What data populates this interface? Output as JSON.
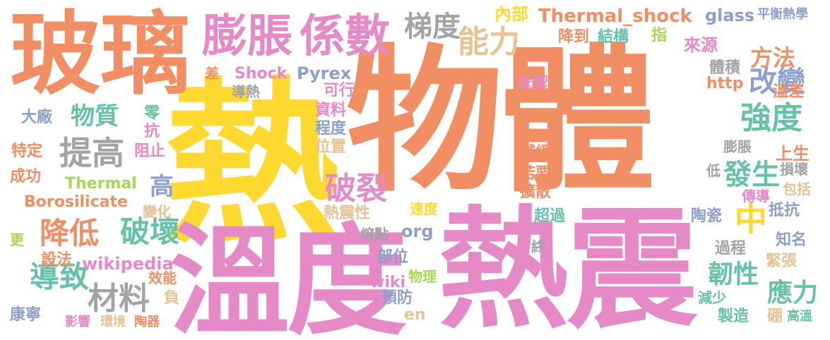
{
  "palette": {
    "orange": "#f28e63",
    "pink": "#e58ac6",
    "yellow": "#ffd92f",
    "green": "#66c2a5",
    "gray": "#a3a3a3",
    "blue": "#8da0cb",
    "lime": "#a6d854",
    "tan": "#e5c494"
  },
  "words": [
    {
      "text": "物體",
      "color": "orange"
    },
    {
      "text": "熱",
      "color": "yellow"
    },
    {
      "text": "溫度",
      "color": "pink"
    },
    {
      "text": "熱震",
      "color": "pink"
    },
    {
      "text": "玻璃",
      "color": "orange"
    },
    {
      "text": "膨脹",
      "color": "pink"
    },
    {
      "text": "係數",
      "color": "pink"
    },
    {
      "text": "提高",
      "color": "gray"
    },
    {
      "text": "物質",
      "color": "green"
    },
    {
      "text": "能力",
      "color": "tan"
    },
    {
      "text": "梯度",
      "color": "gray"
    },
    {
      "text": "方法",
      "color": "orange"
    },
    {
      "text": "改變",
      "color": "blue"
    },
    {
      "text": "強度",
      "color": "green"
    },
    {
      "text": "發生",
      "color": "green"
    },
    {
      "text": "中",
      "color": "yellow"
    },
    {
      "text": "降低",
      "color": "orange"
    },
    {
      "text": "破壞",
      "color": "green"
    },
    {
      "text": "破裂",
      "color": "pink"
    },
    {
      "text": "導致",
      "color": "green"
    },
    {
      "text": "材料",
      "color": "gray"
    },
    {
      "text": "韌性",
      "color": "green"
    },
    {
      "text": "應力",
      "color": "green"
    },
    {
      "text": "高",
      "color": "blue"
    },
    {
      "text": "內部",
      "color": "yellow"
    },
    {
      "text": "Thermal_shock",
      "color": "orange"
    },
    {
      "text": "glass",
      "color": "blue"
    },
    {
      "text": "平衡熱學",
      "color": "blue"
    },
    {
      "text": "降到",
      "color": "orange"
    },
    {
      "text": "結構",
      "color": "green"
    },
    {
      "text": "指",
      "color": "lime"
    },
    {
      "text": "來源",
      "color": "pink"
    },
    {
      "text": "體積",
      "color": "gray"
    },
    {
      "text": "Shock",
      "color": "pink"
    },
    {
      "text": "Pyrex",
      "color": "blue"
    },
    {
      "text": "差",
      "color": "orange"
    },
    {
      "text": "導熱",
      "color": "gray"
    },
    {
      "text": "可行",
      "color": "pink"
    },
    {
      "text": "抵禦",
      "color": "pink"
    },
    {
      "text": "http",
      "color": "orange"
    },
    {
      "text": "溫差",
      "color": "orange"
    },
    {
      "text": "大廠",
      "color": "blue"
    },
    {
      "text": "零",
      "color": "green"
    },
    {
      "text": "抗",
      "color": "pink"
    },
    {
      "text": "資料",
      "color": "pink"
    },
    {
      "text": "程度",
      "color": "blue"
    },
    {
      "text": "特定",
      "color": "orange"
    },
    {
      "text": "阻止",
      "color": "pink"
    },
    {
      "text": "位置",
      "color": "tan"
    },
    {
      "text": "減緩",
      "color": "orange"
    },
    {
      "text": "膨脹",
      "color": "gray"
    },
    {
      "text": "上生",
      "color": "orange"
    },
    {
      "text": "成功",
      "color": "orange"
    },
    {
      "text": "Thermal",
      "color": "lime"
    },
    {
      "text": "若要",
      "color": "orange"
    },
    {
      "text": "低",
      "color": "gray"
    },
    {
      "text": "損壞",
      "color": "gray"
    },
    {
      "text": "擴散",
      "color": "orange"
    },
    {
      "text": "包括",
      "color": "tan"
    },
    {
      "text": "Borosilicate",
      "color": "orange"
    },
    {
      "text": "變化",
      "color": "tan"
    },
    {
      "text": "速度",
      "color": "yellow"
    },
    {
      "text": "傳導",
      "color": "pink"
    },
    {
      "text": "熱震性",
      "color": "tan"
    },
    {
      "text": "超過",
      "color": "green"
    },
    {
      "text": "抵抗",
      "color": "blue"
    },
    {
      "text": "陶瓷",
      "color": "blue"
    },
    {
      "text": "熔點",
      "color": "gray"
    },
    {
      "text": "org",
      "color": "blue"
    },
    {
      "text": "更",
      "color": "lime"
    },
    {
      "text": "知名",
      "color": "blue"
    },
    {
      "text": "部位",
      "color": "blue"
    },
    {
      "text": "終",
      "color": "gray"
    },
    {
      "text": "過程",
      "color": "gray"
    },
    {
      "text": "設法",
      "color": "orange"
    },
    {
      "text": "wikipedia",
      "color": "pink"
    },
    {
      "text": "緊張",
      "color": "tan"
    },
    {
      "text": "效能",
      "color": "orange"
    },
    {
      "text": "wiki",
      "color": "pink"
    },
    {
      "text": "物理",
      "color": "lime"
    },
    {
      "text": "預防",
      "color": "blue"
    },
    {
      "text": "負",
      "color": "tan"
    },
    {
      "text": "en",
      "color": "tan"
    },
    {
      "text": "減少",
      "color": "green"
    },
    {
      "text": "製造",
      "color": "green"
    },
    {
      "text": "硼",
      "color": "tan"
    },
    {
      "text": "高溫",
      "color": "green"
    },
    {
      "text": "康寧",
      "color": "blue"
    },
    {
      "text": "影響",
      "color": "pink"
    },
    {
      "text": "環境",
      "color": "tan"
    },
    {
      "text": "陶器",
      "color": "orange"
    }
  ]
}
